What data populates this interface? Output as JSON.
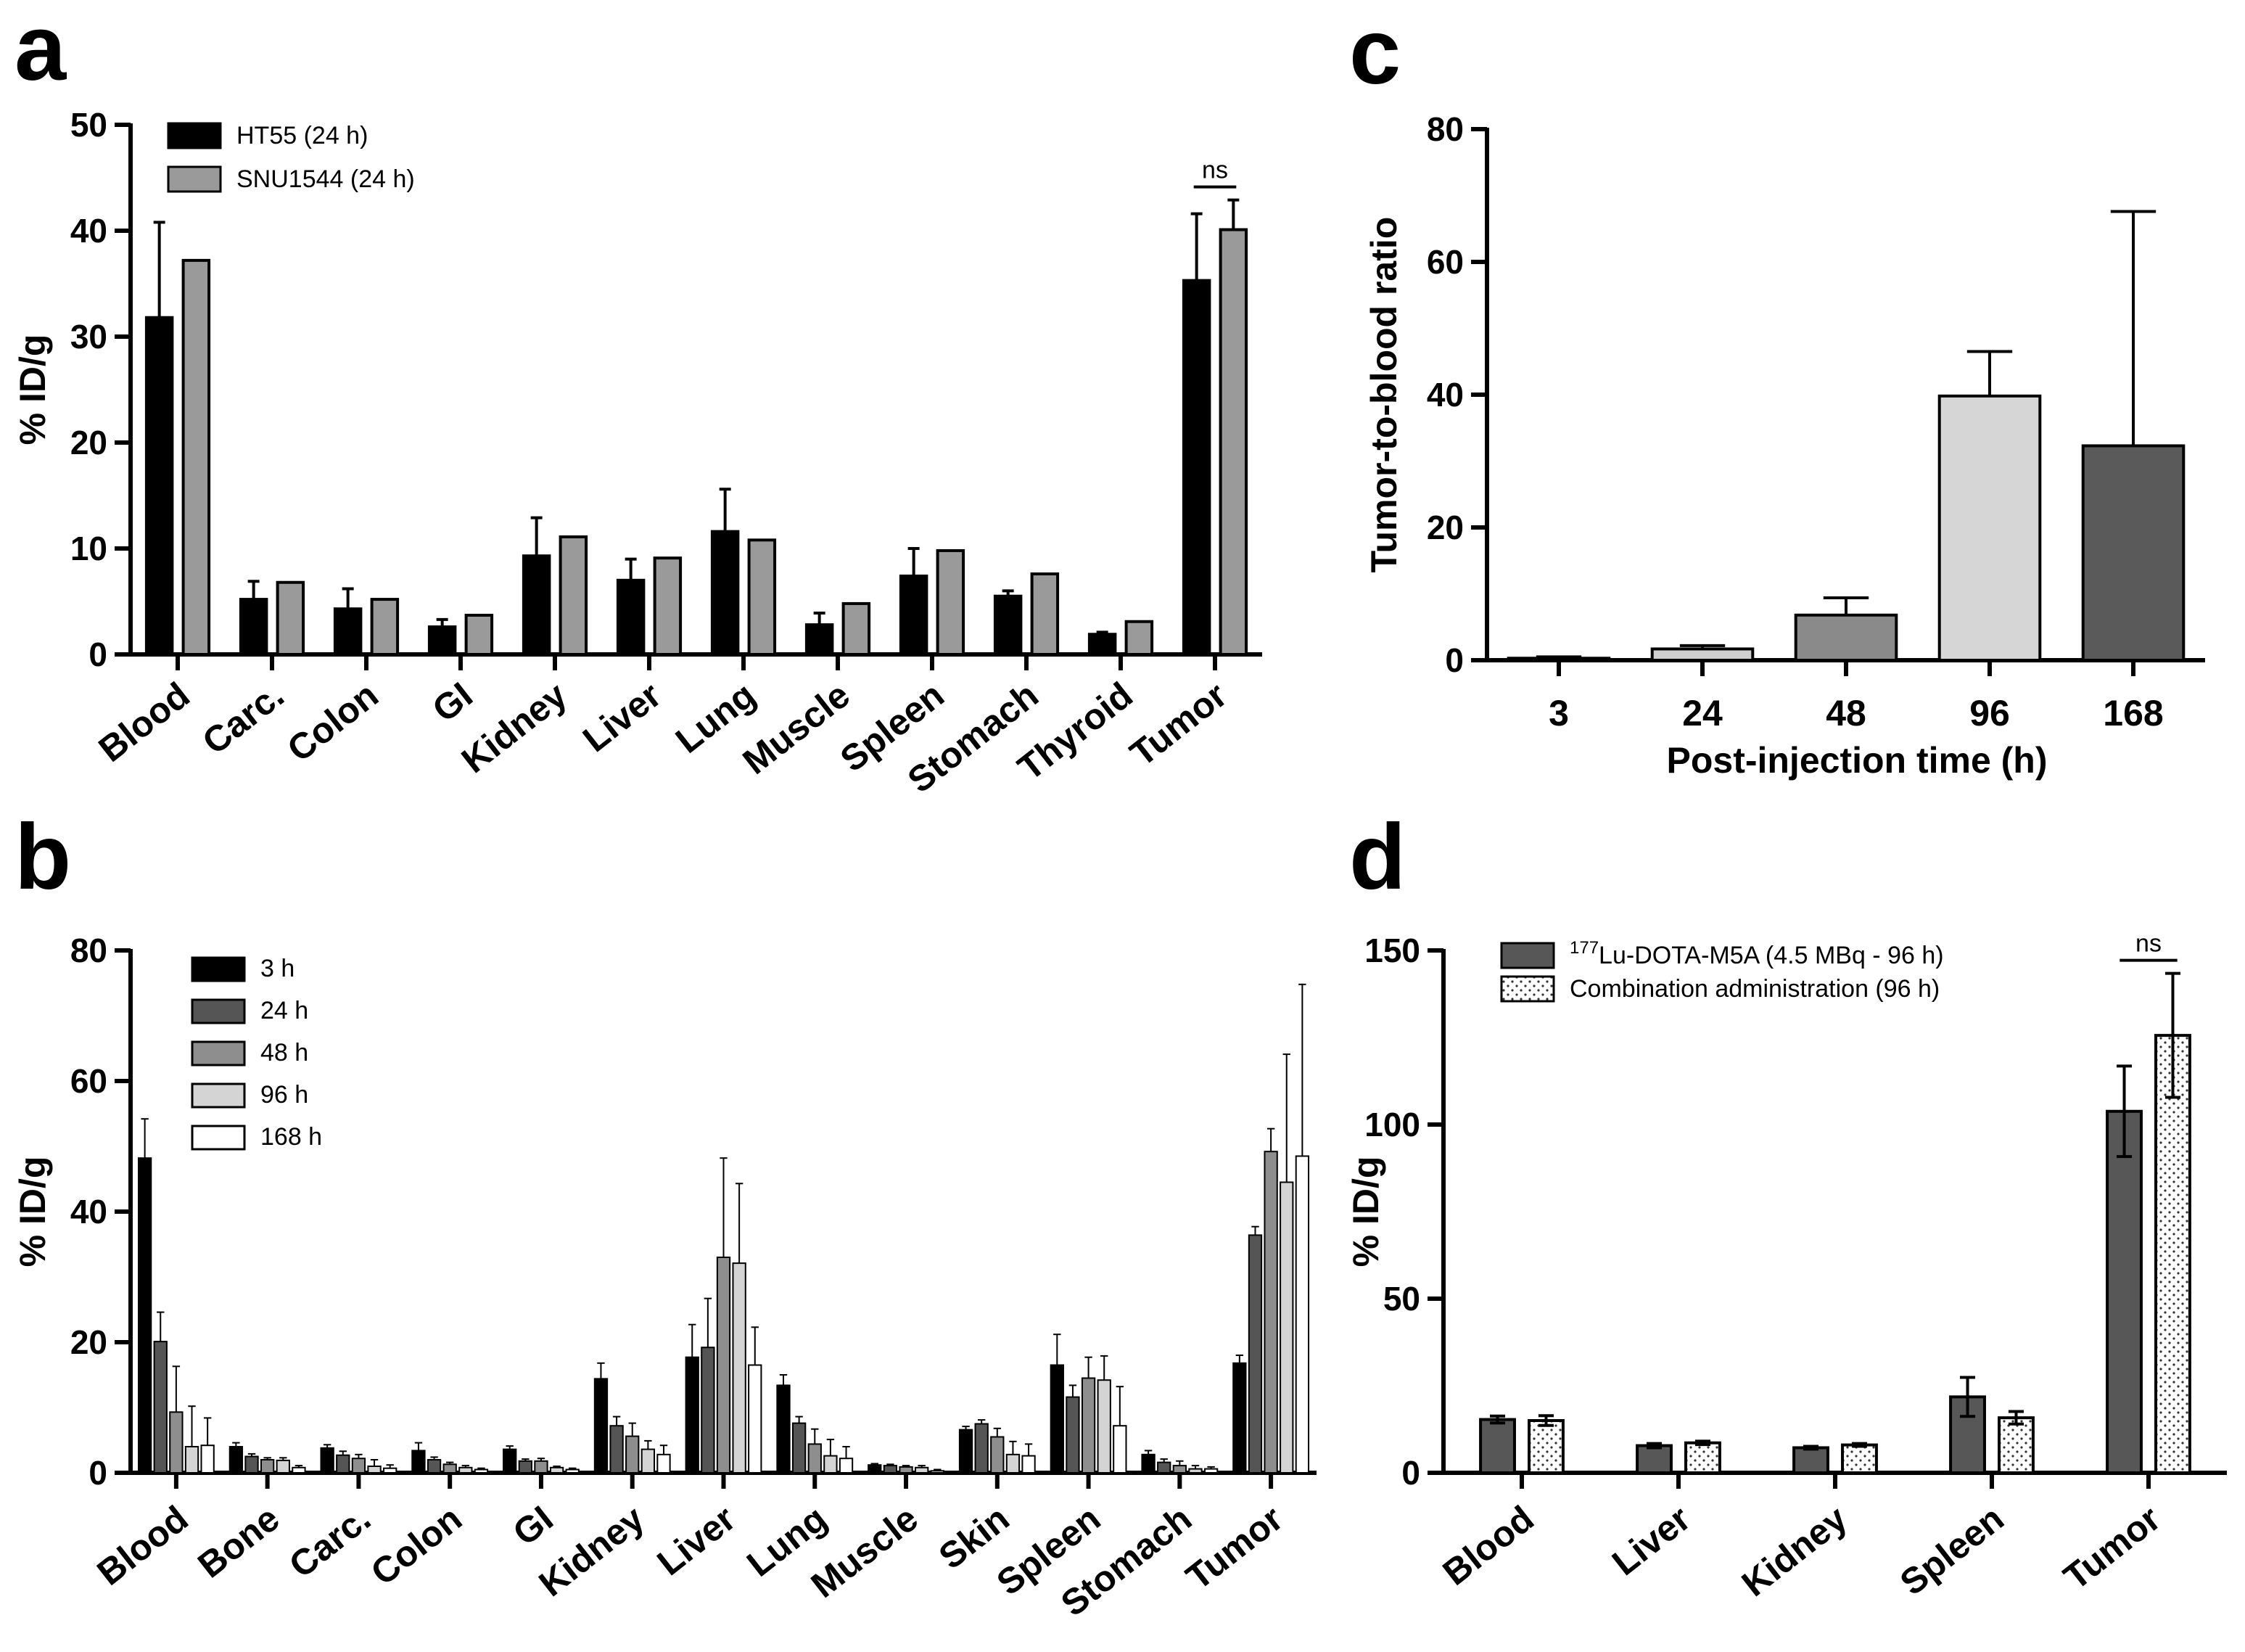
{
  "chart_data": [
    {
      "panel": "a",
      "type": "bar",
      "ylabel": "% ID/g",
      "ylim": [
        0,
        50
      ],
      "yticks": [
        0,
        10,
        20,
        30,
        40,
        50
      ],
      "categories": [
        "Blood",
        "Carc.",
        "Colon",
        "GI",
        "Kidney",
        "Liver",
        "Lung",
        "Muscle",
        "Spleen",
        "Stomach",
        "Thyroid",
        "Tumor"
      ],
      "series": [
        {
          "name": "HT55 (24 h)",
          "color": "#000000",
          "values": [
            31.8,
            5.2,
            4.3,
            2.6,
            9.3,
            7.0,
            11.6,
            2.8,
            7.4,
            5.5,
            1.9,
            35.3
          ],
          "errors": [
            9.0,
            1.7,
            1.9,
            0.7,
            3.6,
            2.0,
            4.0,
            1.1,
            2.6,
            0.5,
            0.2,
            6.3
          ]
        },
        {
          "name": "SNU1544 (24 h)",
          "color": "#9a9a9a",
          "values": [
            37.2,
            6.8,
            5.2,
            3.7,
            11.1,
            9.1,
            10.8,
            4.8,
            9.8,
            7.6,
            3.1,
            40.1
          ],
          "errors": [
            0,
            0,
            0,
            0,
            0,
            0,
            0,
            0,
            0,
            0,
            0,
            2.8
          ]
        }
      ],
      "annotations": [
        {
          "text": "ns",
          "category": "Tumor"
        }
      ],
      "legend": "top-left"
    },
    {
      "panel": "b",
      "type": "bar",
      "ylabel": "% ID/g",
      "ylim": [
        0,
        80
      ],
      "yticks": [
        0,
        20,
        40,
        60,
        80
      ],
      "categories": [
        "Blood",
        "Bone",
        "Carc.",
        "Colon",
        "GI",
        "Kidney",
        "Liver",
        "Lung",
        "Muscle",
        "Skin",
        "Spleen",
        "Stomach",
        "Tumor"
      ],
      "series": [
        {
          "name": "3 h",
          "color": "#000000",
          "values": [
            48.2,
            4.0,
            3.8,
            3.4,
            3.6,
            14.4,
            17.7,
            13.4,
            1.2,
            6.6,
            16.5,
            2.8,
            16.8
          ],
          "errors": [
            6.0,
            0.6,
            0.5,
            1.2,
            0.5,
            2.4,
            5.0,
            1.6,
            0.2,
            0.5,
            4.7,
            0.6,
            1.2
          ]
        },
        {
          "name": "24 h",
          "color": "#555555",
          "values": [
            20.1,
            2.5,
            2.7,
            2.0,
            1.8,
            7.2,
            19.2,
            7.6,
            1.1,
            7.5,
            11.6,
            1.6,
            36.4
          ],
          "errors": [
            4.5,
            0.4,
            0.6,
            0.4,
            0.3,
            1.4,
            7.5,
            1.0,
            0.2,
            0.6,
            1.8,
            0.5,
            1.3
          ]
        },
        {
          "name": "48 h",
          "color": "#8e8e8e",
          "values": [
            9.3,
            2.0,
            2.2,
            1.3,
            1.8,
            5.6,
            33.0,
            4.4,
            0.9,
            5.5,
            14.5,
            1.1,
            49.2
          ],
          "errors": [
            7.0,
            0.3,
            0.6,
            0.3,
            0.4,
            2.0,
            15.2,
            2.3,
            0.2,
            1.3,
            3.2,
            0.7,
            3.5
          ]
        },
        {
          "name": "96 h",
          "color": "#d4d4d4",
          "values": [
            4.0,
            1.9,
            1.0,
            0.8,
            0.8,
            3.6,
            32.1,
            2.6,
            0.8,
            2.8,
            14.2,
            0.6,
            44.5
          ],
          "errors": [
            6.2,
            0.4,
            1.0,
            0.3,
            0.2,
            1.3,
            12.2,
            2.5,
            0.3,
            2.0,
            3.7,
            0.5,
            19.6
          ]
        },
        {
          "name": "168 h",
          "color": "#ffffff",
          "values": [
            4.2,
            0.8,
            0.7,
            0.5,
            0.5,
            2.8,
            16.5,
            2.2,
            0.3,
            2.6,
            7.2,
            0.6,
            48.5
          ],
          "errors": [
            4.2,
            0.3,
            0.5,
            0.2,
            0.2,
            1.4,
            5.8,
            1.8,
            0.2,
            1.8,
            6.0,
            0.3,
            26.3
          ]
        }
      ],
      "legend": "top-left"
    },
    {
      "panel": "c",
      "type": "bar",
      "xlabel": "Post-injection time (h)",
      "ylabel": "Tumor-to-blood ratio",
      "ylim": [
        0,
        80
      ],
      "yticks": [
        0,
        20,
        40,
        60,
        80
      ],
      "categories": [
        "3",
        "24",
        "48",
        "96",
        "168"
      ],
      "values": [
        0.3,
        1.7,
        6.8,
        39.8,
        32.3
      ],
      "errors": [
        0.2,
        0.5,
        2.6,
        6.7,
        35.3
      ],
      "colors": [
        "#ffffff",
        "#cfcfcf",
        "#8a8a8a",
        "#d6d6d6",
        "#5a5a5a"
      ]
    },
    {
      "panel": "d",
      "type": "bar",
      "ylabel": "% ID/g",
      "ylim": [
        0,
        150
      ],
      "yticks": [
        0,
        50,
        100,
        150
      ],
      "categories": [
        "Blood",
        "Liver",
        "Kidney",
        "Spleen",
        "Tumor"
      ],
      "series": [
        {
          "name_sup": "177",
          "name": "Lu-DOTA-M5A (4.5 MBq - 96 h)",
          "color": "#575757",
          "pattern": "solid",
          "values": [
            15.3,
            7.8,
            7.2,
            21.8,
            103.8
          ],
          "errors": [
            1.0,
            0.6,
            0.4,
            5.6,
            13.0
          ]
        },
        {
          "name": "Combination administration (96 h)",
          "color": "#ffffff",
          "pattern": "dots",
          "values": [
            15.0,
            8.6,
            8.0,
            15.8,
            125.6
          ],
          "errors": [
            1.4,
            0.5,
            0.4,
            1.8,
            17.8
          ]
        }
      ],
      "annotations": [
        {
          "text": "ns",
          "category": "Tumor"
        }
      ],
      "legend": "top-left"
    }
  ],
  "panel_labels": [
    "a",
    "b",
    "c",
    "d"
  ]
}
